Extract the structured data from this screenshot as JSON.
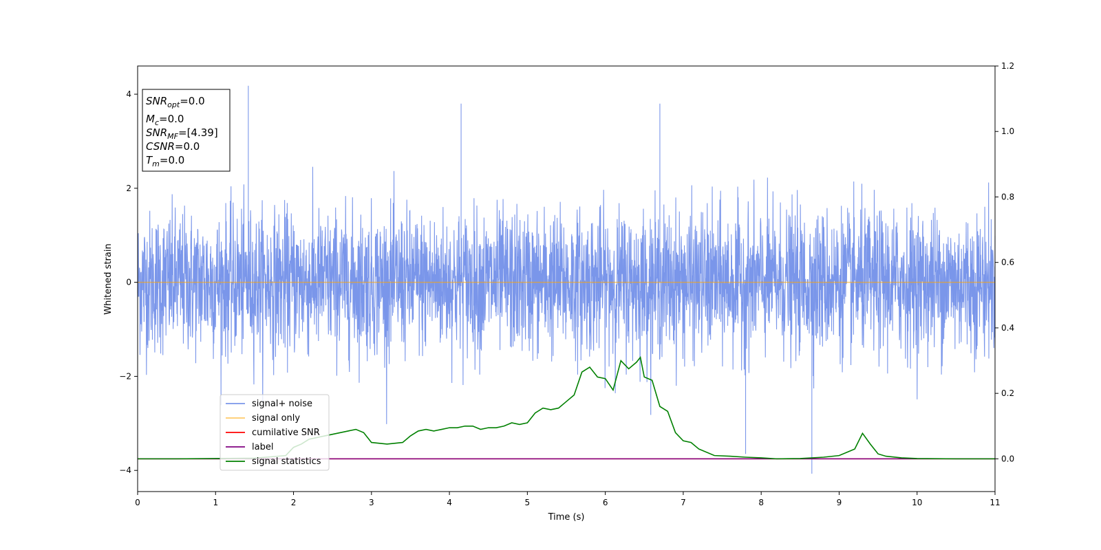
{
  "chart_data": {
    "type": "line",
    "title": "",
    "xlabel": "Time (s)",
    "ylabel": "Whitened strain",
    "y2label": "",
    "xlim": [
      0,
      11
    ],
    "ylim": [
      -4.45,
      4.6
    ],
    "y2lim": [
      -0.1,
      1.2
    ],
    "xticks": [
      "0",
      "1",
      "2",
      "3",
      "4",
      "5",
      "6",
      "7",
      "8",
      "9",
      "10",
      "11"
    ],
    "yticks": [
      "−4",
      "−2",
      "0",
      "2",
      "4"
    ],
    "y2ticks": [
      "0.0",
      "0.2",
      "0.4",
      "0.6",
      "0.8",
      "1.0",
      "1.2"
    ],
    "grid": false,
    "legend_position": "lower-left",
    "series": [
      {
        "name": "signal+ noise",
        "axis": "left",
        "color": "#4169e1",
        "style": "noise",
        "amplitude_sd": 0.75,
        "peak_max": 4.18,
        "peak_min": -4.07
      },
      {
        "name": "signal only",
        "axis": "left",
        "color": "#ffa500",
        "x": [
          0,
          11
        ],
        "y": [
          0,
          0
        ]
      },
      {
        "name": "cumilative SNR",
        "axis": "right",
        "color": "#ff0000",
        "x": [
          0,
          11
        ],
        "y": [
          0,
          0
        ]
      },
      {
        "name": "label",
        "axis": "right",
        "color": "#800080",
        "x": [
          0,
          11
        ],
        "y": [
          0,
          0
        ]
      },
      {
        "name": "signal statistics",
        "axis": "right",
        "color": "#008000",
        "x": [
          0,
          0.5,
          1.0,
          1.5,
          1.9,
          2.0,
          2.1,
          2.2,
          2.3,
          2.4,
          2.5,
          2.6,
          2.7,
          2.8,
          2.9,
          3.0,
          3.2,
          3.4,
          3.5,
          3.6,
          3.7,
          3.8,
          3.9,
          4.0,
          4.1,
          4.2,
          4.3,
          4.4,
          4.5,
          4.6,
          4.7,
          4.8,
          4.9,
          5.0,
          5.1,
          5.2,
          5.3,
          5.4,
          5.5,
          5.6,
          5.7,
          5.8,
          5.9,
          6.0,
          6.1,
          6.2,
          6.3,
          6.4,
          6.45,
          6.5,
          6.6,
          6.7,
          6.8,
          6.9,
          7.0,
          7.1,
          7.2,
          7.4,
          7.6,
          7.8,
          8.0,
          8.2,
          8.5,
          8.8,
          9.0,
          9.1,
          9.2,
          9.3,
          9.4,
          9.5,
          9.6,
          9.8,
          10.0,
          10.5,
          11.0
        ],
        "y": [
          0.0,
          0.0,
          0.001,
          0.002,
          0.01,
          0.035,
          0.045,
          0.06,
          0.065,
          0.07,
          0.075,
          0.08,
          0.085,
          0.09,
          0.08,
          0.05,
          0.045,
          0.05,
          0.07,
          0.085,
          0.09,
          0.085,
          0.09,
          0.095,
          0.095,
          0.1,
          0.1,
          0.09,
          0.095,
          0.095,
          0.1,
          0.11,
          0.105,
          0.11,
          0.14,
          0.155,
          0.15,
          0.155,
          0.175,
          0.195,
          0.265,
          0.28,
          0.25,
          0.245,
          0.21,
          0.3,
          0.275,
          0.295,
          0.31,
          0.25,
          0.24,
          0.16,
          0.145,
          0.08,
          0.055,
          0.05,
          0.03,
          0.01,
          0.008,
          0.005,
          0.003,
          0.0,
          0.001,
          0.005,
          0.01,
          0.02,
          0.03,
          0.078,
          0.045,
          0.015,
          0.008,
          0.003,
          0.001,
          0.0,
          0.0
        ]
      }
    ],
    "annotation": [
      {
        "main": "SNR",
        "sub": "opt",
        "value": "=0.0"
      },
      {
        "main": "M",
        "sub": "c",
        "value": "=0.0"
      },
      {
        "main": "SNR",
        "sub": "MF",
        "value": "=[4.39]"
      },
      {
        "main": "CSNR",
        "sub": "",
        "value": "=0.0"
      },
      {
        "main": "T",
        "sub": "m",
        "value": "=0.0"
      }
    ]
  }
}
